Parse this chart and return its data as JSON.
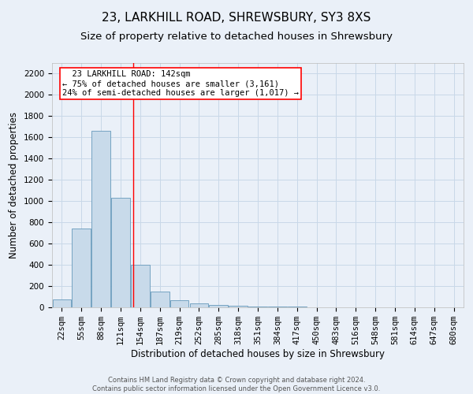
{
  "title_line1": "23, LARKHILL ROAD, SHREWSBURY, SY3 8XS",
  "title_line2": "Size of property relative to detached houses in Shrewsbury",
  "xlabel": "Distribution of detached houses by size in Shrewsbury",
  "ylabel": "Number of detached properties",
  "footer": "Contains HM Land Registry data © Crown copyright and database right 2024.\nContains public sector information licensed under the Open Government Licence v3.0.",
  "bin_labels": [
    "22sqm",
    "55sqm",
    "88sqm",
    "121sqm",
    "154sqm",
    "187sqm",
    "219sqm",
    "252sqm",
    "285sqm",
    "318sqm",
    "351sqm",
    "384sqm",
    "417sqm",
    "450sqm",
    "483sqm",
    "516sqm",
    "548sqm",
    "581sqm",
    "614sqm",
    "647sqm",
    "680sqm"
  ],
  "bar_values": [
    75,
    740,
    1660,
    1030,
    400,
    150,
    65,
    35,
    25,
    15,
    8,
    5,
    4,
    2,
    1,
    1,
    0,
    0,
    0,
    0,
    0
  ],
  "bar_color": "#c8daea",
  "bar_edge_color": "#6699bb",
  "grid_color": "#c8d8e8",
  "background_color": "#eaf0f8",
  "vline_color": "red",
  "annotation_text": "  23 LARKHILL ROAD: 142sqm\n← 75% of detached houses are smaller (3,161)\n24% of semi-detached houses are larger (1,017) →",
  "annotation_box_color": "white",
  "annotation_box_edge_color": "red",
  "ylim": [
    0,
    2300
  ],
  "yticks": [
    0,
    200,
    400,
    600,
    800,
    1000,
    1200,
    1400,
    1600,
    1800,
    2000,
    2200
  ],
  "title_fontsize": 11,
  "subtitle_fontsize": 9.5,
  "axis_label_fontsize": 8.5,
  "tick_fontsize": 7.5,
  "annotation_fontsize": 7.5,
  "footer_fontsize": 6
}
